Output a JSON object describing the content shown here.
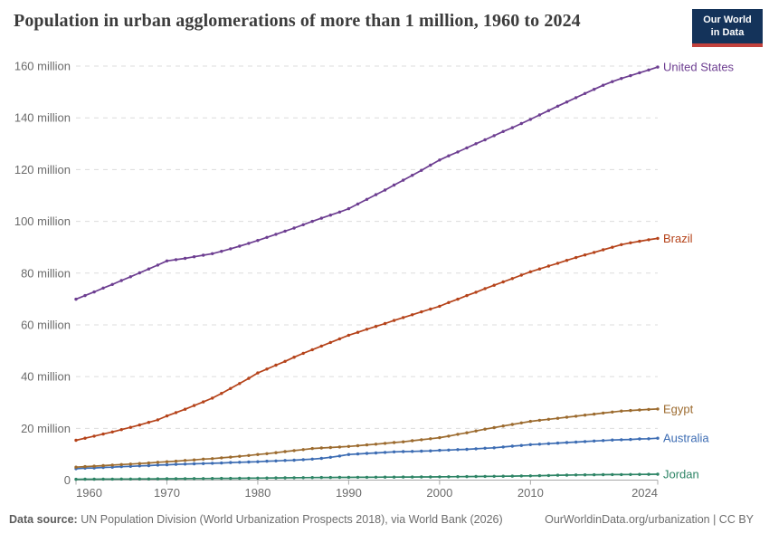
{
  "header": {
    "title": "Population in urban agglomerations of more than 1 million, 1960 to 2024",
    "logo_line1": "Our World",
    "logo_line2": "in Data"
  },
  "footer": {
    "source_label": "Data source:",
    "source_text": "UN Population Division (World Urbanization Prospects 2018), via World Bank (2026)",
    "link_text": "OurWorldinData.org/urbanization | CC BY"
  },
  "colors": {
    "title": "#3c3c3c",
    "axis_text": "#6b6b6b",
    "gridline": "#dcdcdc",
    "axis_line": "#a8a8a8",
    "logo_bg": "#14335a",
    "logo_red": "#c2413c"
  },
  "chart_data": {
    "type": "line",
    "title": "Population in urban agglomerations of more than 1 million, 1960 to 2024",
    "xlabel": "",
    "ylabel": "",
    "xlim": [
      1960,
      2024
    ],
    "ylim": [
      0,
      160000000
    ],
    "grid": "horizontal-dashed",
    "legend_position": "right-end-labels",
    "ytick_values_millions": [
      0,
      20,
      40,
      60,
      80,
      100,
      120,
      140,
      160
    ],
    "ytick_suffix": " million",
    "xticks": [
      1960,
      1970,
      1980,
      1990,
      2000,
      2010,
      2024
    ],
    "years": [
      1960,
      1961,
      1962,
      1963,
      1964,
      1965,
      1966,
      1967,
      1968,
      1969,
      1970,
      1971,
      1972,
      1973,
      1974,
      1975,
      1976,
      1977,
      1978,
      1979,
      1980,
      1981,
      1982,
      1983,
      1984,
      1985,
      1986,
      1987,
      1988,
      1989,
      1990,
      1991,
      1992,
      1993,
      1994,
      1995,
      1996,
      1997,
      1998,
      1999,
      2000,
      2001,
      2002,
      2003,
      2004,
      2005,
      2006,
      2007,
      2008,
      2009,
      2010,
      2011,
      2012,
      2013,
      2014,
      2015,
      2016,
      2017,
      2018,
      2019,
      2020,
      2021,
      2022,
      2023,
      2024
    ],
    "series": [
      {
        "name": "United States",
        "color": "#6d3e91",
        "values_millions": [
          69.9,
          71.3,
          72.7,
          74.2,
          75.6,
          77.1,
          78.6,
          80.1,
          81.6,
          83.1,
          84.7,
          85.2,
          85.7,
          86.3,
          86.9,
          87.5,
          88.4,
          89.4,
          90.4,
          91.5,
          92.6,
          93.8,
          95.0,
          96.2,
          97.4,
          98.7,
          100.0,
          101.2,
          102.4,
          103.6,
          104.9,
          106.7,
          108.5,
          110.3,
          112.1,
          114.0,
          115.9,
          117.8,
          119.7,
          121.7,
          123.7,
          125.3,
          126.8,
          128.4,
          130.0,
          131.5,
          133.1,
          134.7,
          136.2,
          137.8,
          139.4,
          141.1,
          142.8,
          144.5,
          146.1,
          147.8,
          149.4,
          151.0,
          152.6,
          154.0,
          155.2,
          156.3,
          157.4,
          158.5,
          159.6
        ]
      },
      {
        "name": "Brazil",
        "color": "#b5431a",
        "values_millions": [
          15.4,
          16.2,
          17.0,
          17.8,
          18.6,
          19.5,
          20.4,
          21.3,
          22.3,
          23.3,
          24.8,
          26.1,
          27.4,
          28.8,
          30.2,
          31.7,
          33.5,
          35.4,
          37.3,
          39.3,
          41.4,
          42.9,
          44.4,
          45.9,
          47.5,
          49.0,
          50.4,
          51.8,
          53.2,
          54.6,
          56.0,
          57.1,
          58.3,
          59.4,
          60.5,
          61.7,
          62.8,
          63.9,
          65.0,
          66.1,
          67.2,
          68.6,
          69.9,
          71.3,
          72.6,
          74.0,
          75.3,
          76.6,
          77.9,
          79.2,
          80.5,
          81.6,
          82.7,
          83.8,
          84.9,
          86.0,
          87.0,
          88.0,
          89.0,
          90.0,
          91.0,
          91.7,
          92.3,
          92.9,
          93.4
        ]
      },
      {
        "name": "Egypt",
        "color": "#9c6b2f",
        "values_millions": [
          5.0,
          5.2,
          5.4,
          5.6,
          5.8,
          6.0,
          6.2,
          6.4,
          6.6,
          6.9,
          7.1,
          7.3,
          7.6,
          7.8,
          8.1,
          8.3,
          8.6,
          8.9,
          9.2,
          9.5,
          9.9,
          10.2,
          10.6,
          11.0,
          11.4,
          11.8,
          12.2,
          12.4,
          12.6,
          12.8,
          13.0,
          13.3,
          13.6,
          13.9,
          14.2,
          14.5,
          14.8,
          15.2,
          15.6,
          16.0,
          16.4,
          17.0,
          17.7,
          18.3,
          19.0,
          19.7,
          20.3,
          20.9,
          21.5,
          22.1,
          22.7,
          23.1,
          23.5,
          23.9,
          24.3,
          24.7,
          25.1,
          25.5,
          25.9,
          26.3,
          26.7,
          26.9,
          27.1,
          27.3,
          27.5
        ]
      },
      {
        "name": "Australia",
        "color": "#3c6cb3",
        "values_millions": [
          4.4,
          4.6,
          4.7,
          4.9,
          5.0,
          5.2,
          5.3,
          5.5,
          5.6,
          5.8,
          5.9,
          6.1,
          6.2,
          6.3,
          6.4,
          6.5,
          6.6,
          6.8,
          6.9,
          7.0,
          7.1,
          7.3,
          7.4,
          7.6,
          7.7,
          7.9,
          8.1,
          8.4,
          8.8,
          9.3,
          9.9,
          10.1,
          10.3,
          10.5,
          10.7,
          10.9,
          11.0,
          11.1,
          11.2,
          11.3,
          11.5,
          11.6,
          11.8,
          11.9,
          12.1,
          12.3,
          12.5,
          12.8,
          13.1,
          13.4,
          13.7,
          13.9,
          14.1,
          14.3,
          14.5,
          14.7,
          14.9,
          15.1,
          15.3,
          15.5,
          15.6,
          15.7,
          15.9,
          16.0,
          16.2
        ]
      },
      {
        "name": "Jordan",
        "color": "#2d8465",
        "values_millions": [
          0.33,
          0.34,
          0.36,
          0.38,
          0.4,
          0.41,
          0.43,
          0.45,
          0.47,
          0.49,
          0.51,
          0.53,
          0.55,
          0.58,
          0.6,
          0.63,
          0.65,
          0.68,
          0.71,
          0.74,
          0.77,
          0.8,
          0.84,
          0.87,
          0.91,
          0.95,
          0.98,
          1.0,
          1.02,
          1.04,
          1.06,
          1.08,
          1.1,
          1.12,
          1.14,
          1.16,
          1.18,
          1.2,
          1.22,
          1.24,
          1.27,
          1.3,
          1.33,
          1.36,
          1.39,
          1.43,
          1.47,
          1.51,
          1.55,
          1.6,
          1.65,
          1.72,
          1.8,
          1.88,
          1.94,
          1.99,
          2.03,
          2.06,
          2.09,
          2.12,
          2.15,
          2.18,
          2.21,
          2.24,
          2.27
        ]
      }
    ]
  }
}
